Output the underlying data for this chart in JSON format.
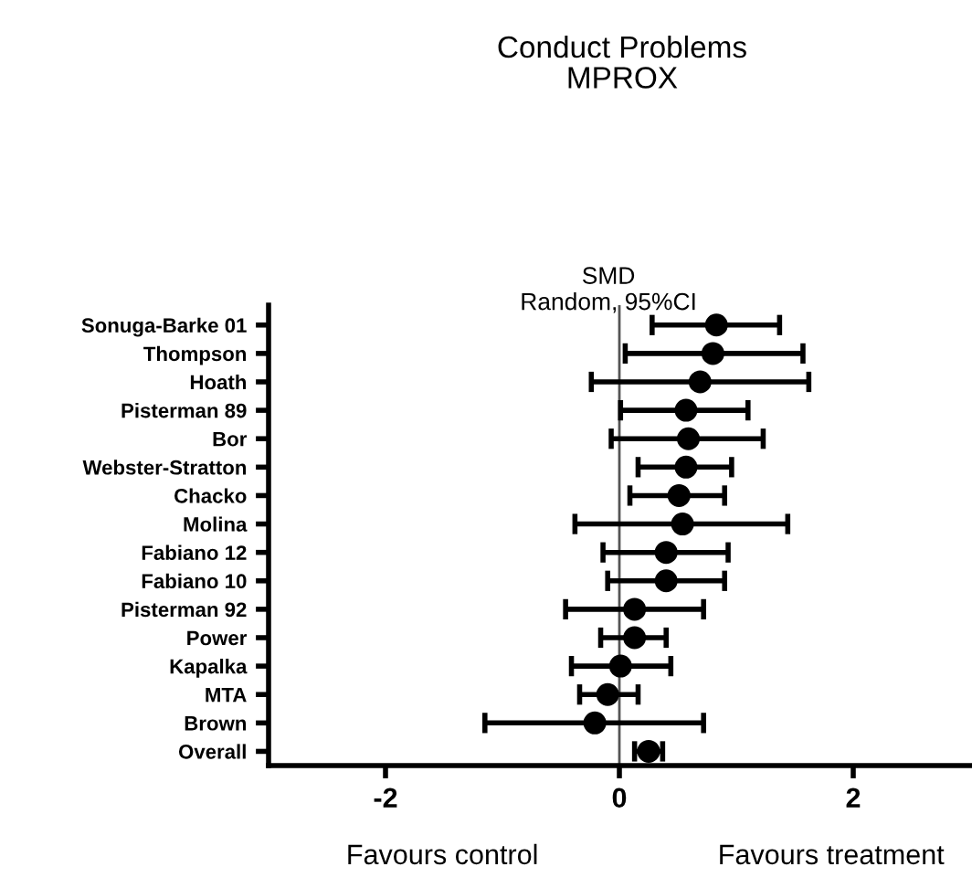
{
  "chart_data": {
    "type": "scatter",
    "orientation": "horizontal",
    "title": "Conduct Problems\nMPROX",
    "subtitle": "SMD\nRandom, 95%CI",
    "categories": [
      "Sonuga-Barke 01",
      "Thompson",
      "Hoath",
      "Pisterman 89",
      "Bor",
      "Webster-Stratton",
      "Chacko",
      "Molina",
      "Fabiano 12",
      "Fabiano 10",
      "Pisterman 92",
      "Power",
      "Kapalka",
      "MTA",
      "Brown",
      "Overall"
    ],
    "values": [
      0.83,
      0.8,
      0.69,
      0.57,
      0.59,
      0.57,
      0.51,
      0.54,
      0.4,
      0.4,
      0.13,
      0.13,
      0.01,
      -0.1,
      -0.21,
      0.25
    ],
    "errors": [
      [
        0.28,
        1.37
      ],
      [
        0.05,
        1.57
      ],
      [
        -0.24,
        1.62
      ],
      [
        0.01,
        1.1
      ],
      [
        -0.07,
        1.23
      ],
      [
        0.16,
        0.96
      ],
      [
        0.09,
        0.9
      ],
      [
        -0.38,
        1.44
      ],
      [
        -0.14,
        0.93
      ],
      [
        -0.1,
        0.9
      ],
      [
        -0.46,
        0.72
      ],
      [
        -0.16,
        0.4
      ],
      [
        -0.41,
        0.44
      ],
      [
        -0.34,
        0.16
      ],
      [
        -1.15,
        0.72
      ],
      [
        0.13,
        0.37
      ]
    ],
    "color": "#000000",
    "marker": "circle",
    "xlim": [
      -3,
      3
    ],
    "xticks": [
      -2,
      0,
      2
    ],
    "ref_lines": [
      {
        "axis": "x",
        "value": 0,
        "color": "#555555"
      }
    ],
    "annotations": [
      "Favours control",
      "Favours treatment"
    ],
    "grid": false,
    "legend": false
  }
}
